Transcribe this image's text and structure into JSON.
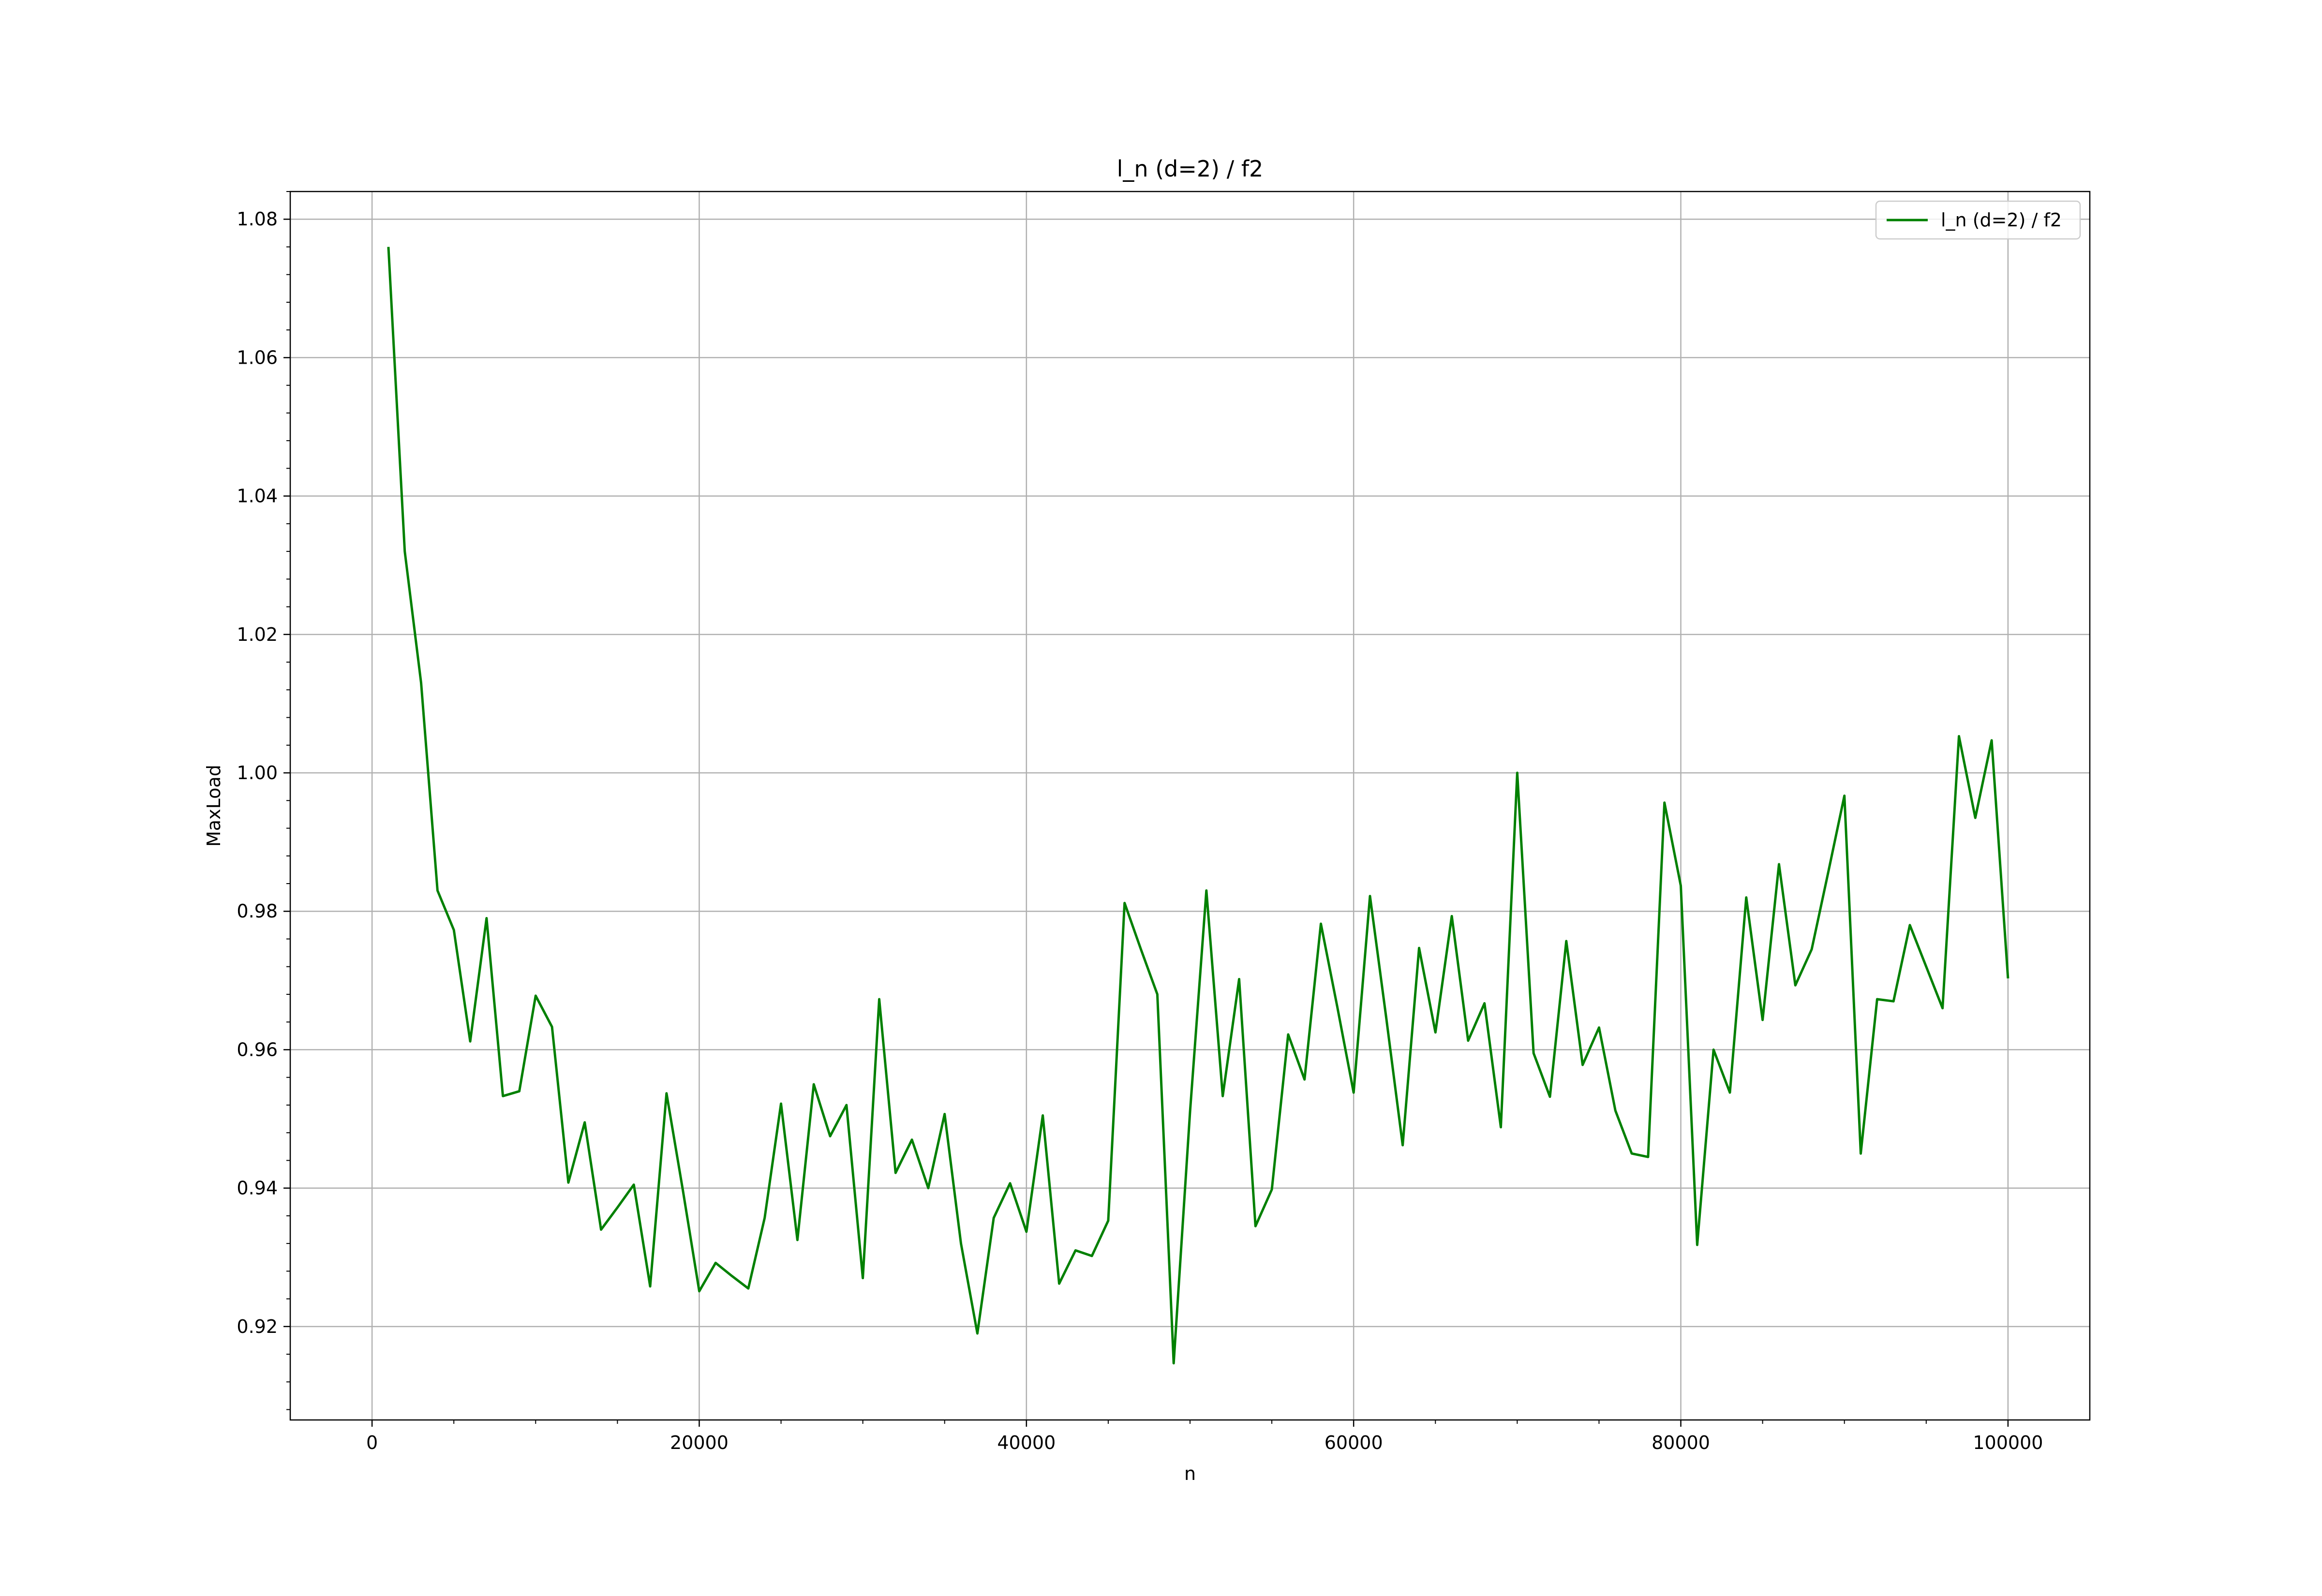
{
  "chart_data": {
    "type": "line",
    "title": "l_n (d=2) / f2",
    "xlabel": "n",
    "ylabel": "MaxLoad",
    "xlim": [
      -5000,
      105000
    ],
    "ylim": [
      0.9065,
      1.084
    ],
    "xticks": [
      0,
      20000,
      40000,
      60000,
      80000,
      100000
    ],
    "xtick_labels": [
      "0",
      "20000",
      "40000",
      "60000",
      "80000",
      "100000"
    ],
    "yticks": [
      0.92,
      0.94,
      0.96,
      0.98,
      1.0,
      1.02,
      1.04,
      1.06,
      1.08
    ],
    "ytick_labels": [
      "0.92",
      "0.94",
      "0.96",
      "0.98",
      "1.00",
      "1.02",
      "1.04",
      "1.06",
      "1.08"
    ],
    "grid": true,
    "legend_position": "top-right",
    "colors": {
      "series": "#008000",
      "grid": "#b0b0b0",
      "axes": "#000000"
    },
    "series": [
      {
        "name": "l_n (d=2) / f2",
        "x": [
          1000,
          2000,
          3000,
          4000,
          5000,
          6000,
          7000,
          8000,
          9000,
          10000,
          11000,
          12000,
          13000,
          14000,
          15000,
          16000,
          17000,
          18000,
          19000,
          20000,
          21000,
          22000,
          23000,
          24000,
          25000,
          26000,
          27000,
          28000,
          29000,
          30000,
          31000,
          32000,
          33000,
          34000,
          35000,
          36000,
          37000,
          38000,
          39000,
          40000,
          41000,
          42000,
          43000,
          44000,
          45000,
          46000,
          47000,
          48000,
          49000,
          50000,
          51000,
          52000,
          53000,
          54000,
          55000,
          56000,
          57000,
          58000,
          59000,
          60000,
          61000,
          62000,
          63000,
          64000,
          65000,
          66000,
          67000,
          68000,
          69000,
          70000,
          71000,
          72000,
          73000,
          74000,
          75000,
          76000,
          77000,
          78000,
          79000,
          80000,
          81000,
          82000,
          83000,
          84000,
          85000,
          86000,
          87000,
          88000,
          89000,
          90000,
          91000,
          92000,
          93000,
          94000,
          95000,
          96000,
          97000,
          98000,
          99000,
          100000
        ],
        "y": [
          1.076,
          1.032,
          1.013,
          0.983,
          0.9773,
          0.9612,
          0.979,
          0.9533,
          0.954,
          0.9678,
          0.9633,
          0.9408,
          0.9495,
          0.934,
          0.9372,
          0.9405,
          0.9258,
          0.9537,
          0.9397,
          0.9251,
          0.9292,
          0.9273,
          0.9255,
          0.9357,
          0.9522,
          0.9325,
          0.955,
          0.9475,
          0.952,
          0.927,
          0.9673,
          0.9422,
          0.947,
          0.94,
          0.9507,
          0.932,
          0.919,
          0.9357,
          0.9407,
          0.9337,
          0.9505,
          0.9262,
          0.931,
          0.9302,
          0.9353,
          0.9812,
          0.9745,
          0.968,
          0.9147,
          0.951,
          0.983,
          0.9533,
          0.9702,
          0.9345,
          0.9398,
          0.9622,
          0.9557,
          0.9782,
          0.9662,
          0.9538,
          0.9822,
          0.9645,
          0.9462,
          0.9747,
          0.9625,
          0.9793,
          0.9613,
          0.9667,
          0.9488,
          1.0,
          0.9595,
          0.9532,
          0.9757,
          0.9578,
          0.9632,
          0.9512,
          0.945,
          0.9445,
          0.9957,
          0.9837,
          0.9318,
          0.96,
          0.9538,
          0.982,
          0.9643,
          0.9868,
          0.9693,
          0.9745,
          0.9855,
          0.9967,
          0.945,
          0.9673,
          0.967,
          0.978,
          0.972,
          0.966,
          1.0053,
          0.9935,
          1.0047,
          0.9703
        ]
      }
    ]
  }
}
